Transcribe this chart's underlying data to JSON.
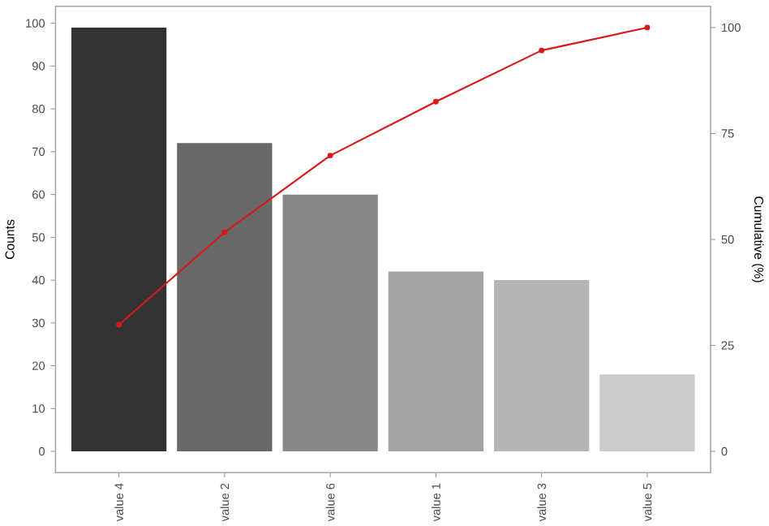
{
  "chart_data": {
    "type": "bar",
    "xlabel": null,
    "ylabel": "Counts",
    "y2label": "Cumulative (%)",
    "categories": [
      "value 4",
      "value 2",
      "value 6",
      "value 1",
      "value 3",
      "value 5"
    ],
    "series": [
      {
        "colors": [
          "#333333",
          "#686868",
          "#888888",
          "#a3a3a3",
          "#b5b5b5",
          "#cbcbcb"
        ],
        "values": [
          99,
          72,
          60,
          42,
          40,
          18
        ]
      },
      {
        "type": "line",
        "axis": "y2",
        "color": "#d7191c",
        "marker": "circle",
        "values": [
          29.9,
          51.7,
          69.8,
          82.5,
          94.6,
          100
        ]
      }
    ],
    "ylim": [
      -4.95,
      103.95
    ],
    "yticks": [
      0,
      10,
      20,
      30,
      40,
      50,
      60,
      70,
      80,
      90,
      100
    ],
    "y2lim": [
      -5,
      105
    ],
    "y2ticks": [
      0,
      25,
      50,
      75,
      100
    ],
    "grid": false
  }
}
